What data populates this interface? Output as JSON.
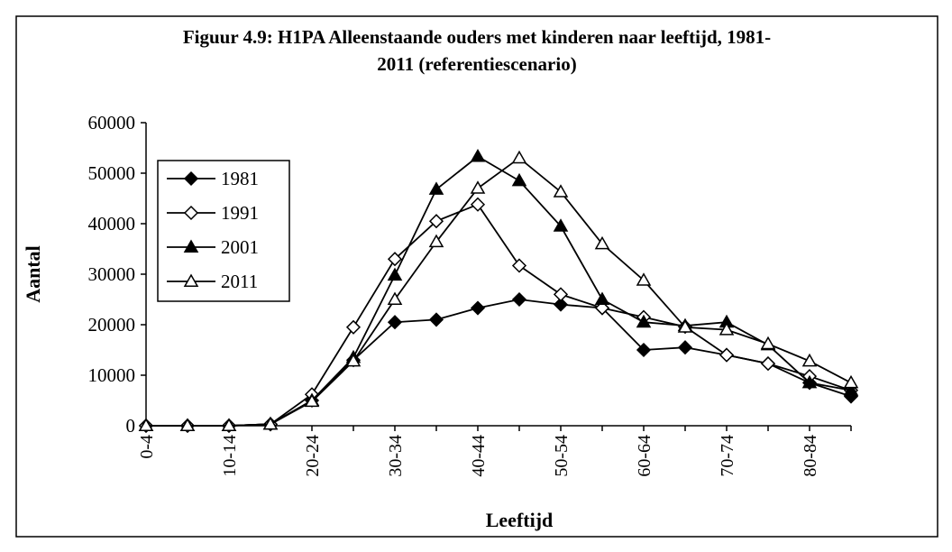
{
  "chart_data": {
    "type": "line",
    "title": [
      "Figuur 4.9: H1PA Alleenstaande ouders met kinderen naar leeftijd, 1981-",
      "2011 (referentiescenario)"
    ],
    "x_label": "Leeftijd",
    "y_label": "Aantal",
    "categories": [
      "0-4",
      null,
      "10-14",
      null,
      "20-24",
      null,
      "30-34",
      null,
      "40-44",
      null,
      "50-54",
      null,
      "60-64",
      null,
      "70-74",
      null,
      "80-84",
      null
    ],
    "series": [
      {
        "name": "1981",
        "color": "#000000",
        "marker": "diamond",
        "marker_fill": "#000000",
        "values": [
          0,
          0,
          0,
          300,
          5000,
          13000,
          20500,
          21000,
          23300,
          25000,
          24000,
          23300,
          15000,
          15500,
          14000,
          12300,
          8500,
          5800
        ]
      },
      {
        "name": "1991",
        "color": "#000000",
        "marker": "diamond",
        "marker_fill": "#ffffff",
        "values": [
          0,
          0,
          0,
          300,
          6200,
          19500,
          33000,
          40500,
          43800,
          31700,
          26000,
          23300,
          21500,
          19600,
          14000,
          12300,
          9800,
          7000
        ]
      },
      {
        "name": "2001",
        "color": "#000000",
        "marker": "triangle",
        "marker_fill": "#000000",
        "values": [
          0,
          0,
          0,
          300,
          5000,
          13500,
          29800,
          46800,
          53300,
          48500,
          39500,
          25000,
          20500,
          19800,
          20500,
          16000,
          8500,
          7000
        ]
      },
      {
        "name": "2011",
        "color": "#000000",
        "marker": "triangle",
        "marker_fill": "#ffffff",
        "values": [
          0,
          0,
          0,
          300,
          4800,
          12800,
          25000,
          36400,
          47000,
          53000,
          46300,
          36000,
          28800,
          19500,
          19000,
          16200,
          12800,
          8500
        ]
      }
    ],
    "ylim": [
      0,
      60000
    ],
    "yticks": [
      0,
      10000,
      20000,
      30000,
      40000,
      50000,
      60000
    ],
    "grid": false,
    "legend": "upper left"
  }
}
